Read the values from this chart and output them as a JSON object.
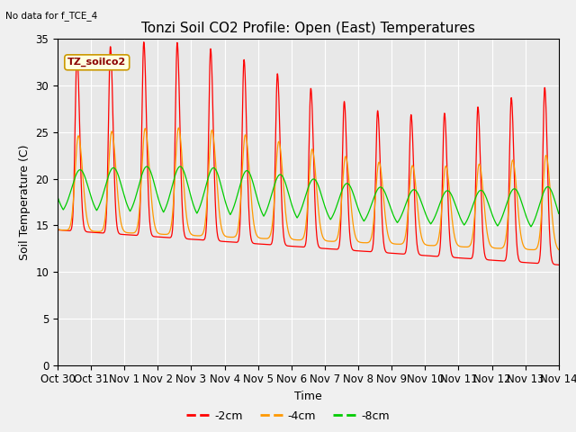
{
  "title": "Tonzi Soil CO2 Profile: Open (East) Temperatures",
  "subtitle": "No data for f_TCE_4",
  "xlabel": "Time",
  "ylabel": "Soil Temperature (C)",
  "ylim": [
    0,
    35
  ],
  "yticks": [
    0,
    5,
    10,
    15,
    20,
    25,
    30,
    35
  ],
  "xtick_labels": [
    "Oct 30",
    "Oct 31",
    "Nov 1",
    "Nov 2",
    "Nov 3",
    "Nov 4",
    "Nov 5",
    "Nov 6",
    "Nov 7",
    "Nov 8",
    "Nov 9",
    "Nov 10",
    "Nov 11",
    "Nov 12",
    "Nov 13",
    "Nov 14"
  ],
  "legend_label": "TZ_soilco2",
  "legend_entries": [
    "-2cm",
    "-4cm",
    "-8cm"
  ],
  "line_colors": [
    "#ff0000",
    "#ff9900",
    "#00cc00"
  ],
  "title_fontsize": 11,
  "label_fontsize": 9,
  "tick_fontsize": 8.5
}
